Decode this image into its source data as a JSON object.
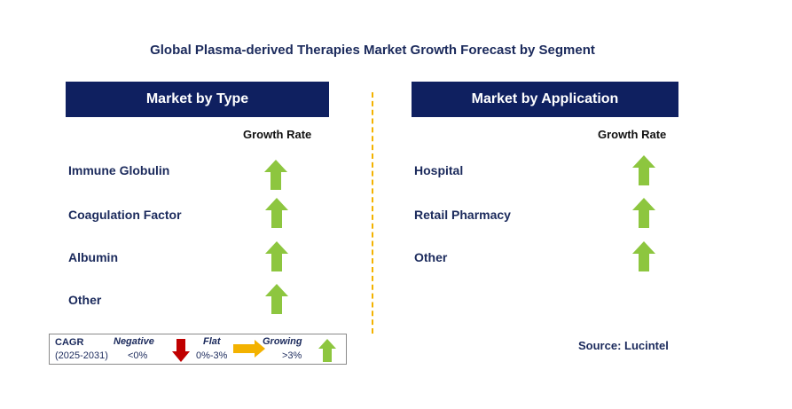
{
  "title": "Global Plasma-derived Therapies Market Growth Forecast by Segment",
  "left_panel": {
    "header": "Market by Type",
    "rate_label": "Growth Rate",
    "segments": [
      {
        "label": "Immune Globulin",
        "trend": "growing"
      },
      {
        "label": "Coagulation Factor",
        "trend": "growing"
      },
      {
        "label": "Albumin",
        "trend": "growing"
      },
      {
        "label": "Other",
        "trend": "growing"
      }
    ]
  },
  "right_panel": {
    "header": "Market by Application",
    "rate_label": "Growth Rate",
    "segments": [
      {
        "label": "Hospital",
        "trend": "growing"
      },
      {
        "label": "Retail Pharmacy",
        "trend": "growing"
      },
      {
        "label": "Other",
        "trend": "growing"
      }
    ]
  },
  "legend": {
    "cagr_label": "CAGR",
    "period": "(2025-2031)",
    "negative": {
      "label": "Negative",
      "range": "<0%",
      "icon": "down-arrow-red"
    },
    "flat": {
      "label": "Flat",
      "range": "0%-3%",
      "icon": "right-arrow-yellow"
    },
    "growing": {
      "label": "Growing",
      "range": ">3%",
      "icon": "up-arrow-green"
    }
  },
  "source": "Source: Lucintel",
  "colors": {
    "header_bg": "#0f2060",
    "up_arrow": "#8dc63f",
    "down_arrow": "#c00000",
    "flat_arrow": "#f3b200",
    "divider": "#f3b200"
  }
}
